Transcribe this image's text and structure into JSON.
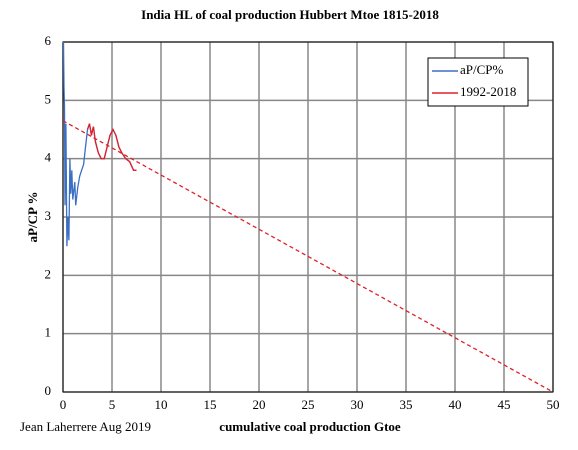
{
  "chart_data": {
    "type": "line",
    "title": "India HL of coal production Hubbert Mtoe 1815-2018",
    "x_label": "cumulative coal production Gtoe",
    "y_label": "aP/CP %",
    "annotation": "Jean Laherrere Aug 2019",
    "xlim": [
      0,
      50
    ],
    "xticks": [
      0,
      5,
      10,
      15,
      20,
      25,
      30,
      35,
      40,
      45,
      50
    ],
    "ylim": [
      0,
      6
    ],
    "yticks": [
      0,
      1,
      2,
      3,
      4,
      5,
      6
    ],
    "grid": true,
    "legend": "top-right",
    "series": [
      {
        "name": "aP/CP%",
        "color": "#3b6fc4",
        "dash": false,
        "x": [
          0.05,
          0.1,
          0.15,
          0.2,
          0.3,
          0.4,
          0.5,
          0.6,
          0.7,
          0.8,
          0.9,
          1.0,
          1.2,
          1.3,
          1.5,
          1.7,
          1.9,
          2.1,
          2.3,
          2.5,
          2.7,
          2.9,
          3.1,
          3.3,
          3.6,
          3.9,
          4.2,
          4.5,
          4.8,
          5.1,
          5.4,
          5.7,
          6.0,
          6.4,
          6.8,
          7.2,
          7.5
        ],
        "values": [
          6,
          5.2,
          4.9,
          3.2,
          4.6,
          2.5,
          3.0,
          2.6,
          4.0,
          3.4,
          3.8,
          3.3,
          3.6,
          3.2,
          3.5,
          3.7,
          3.8,
          3.9,
          4.2,
          4.5,
          4.6,
          4.4,
          4.55,
          4.3,
          4.1,
          4.0,
          4.0,
          4.2,
          4.4,
          4.5,
          4.4,
          4.2,
          4.1,
          4.0,
          3.95,
          3.8,
          3.8
        ]
      },
      {
        "name": "1992-2018",
        "color": "#e0202a",
        "dash": false,
        "x": [
          2.5,
          2.7,
          2.9,
          3.1,
          3.3,
          3.6,
          3.9,
          4.2,
          4.5,
          4.8,
          5.1,
          5.4,
          5.7,
          6.0,
          6.4,
          6.8,
          7.2,
          7.5
        ],
        "values": [
          4.5,
          4.6,
          4.4,
          4.55,
          4.3,
          4.1,
          4.0,
          4.0,
          4.2,
          4.4,
          4.5,
          4.4,
          4.2,
          4.1,
          4.0,
          3.95,
          3.8,
          3.8
        ]
      },
      {
        "color": "#e0202a",
        "dash": true,
        "x": [
          0,
          50
        ],
        "values": [
          4.65,
          0
        ]
      }
    ]
  }
}
